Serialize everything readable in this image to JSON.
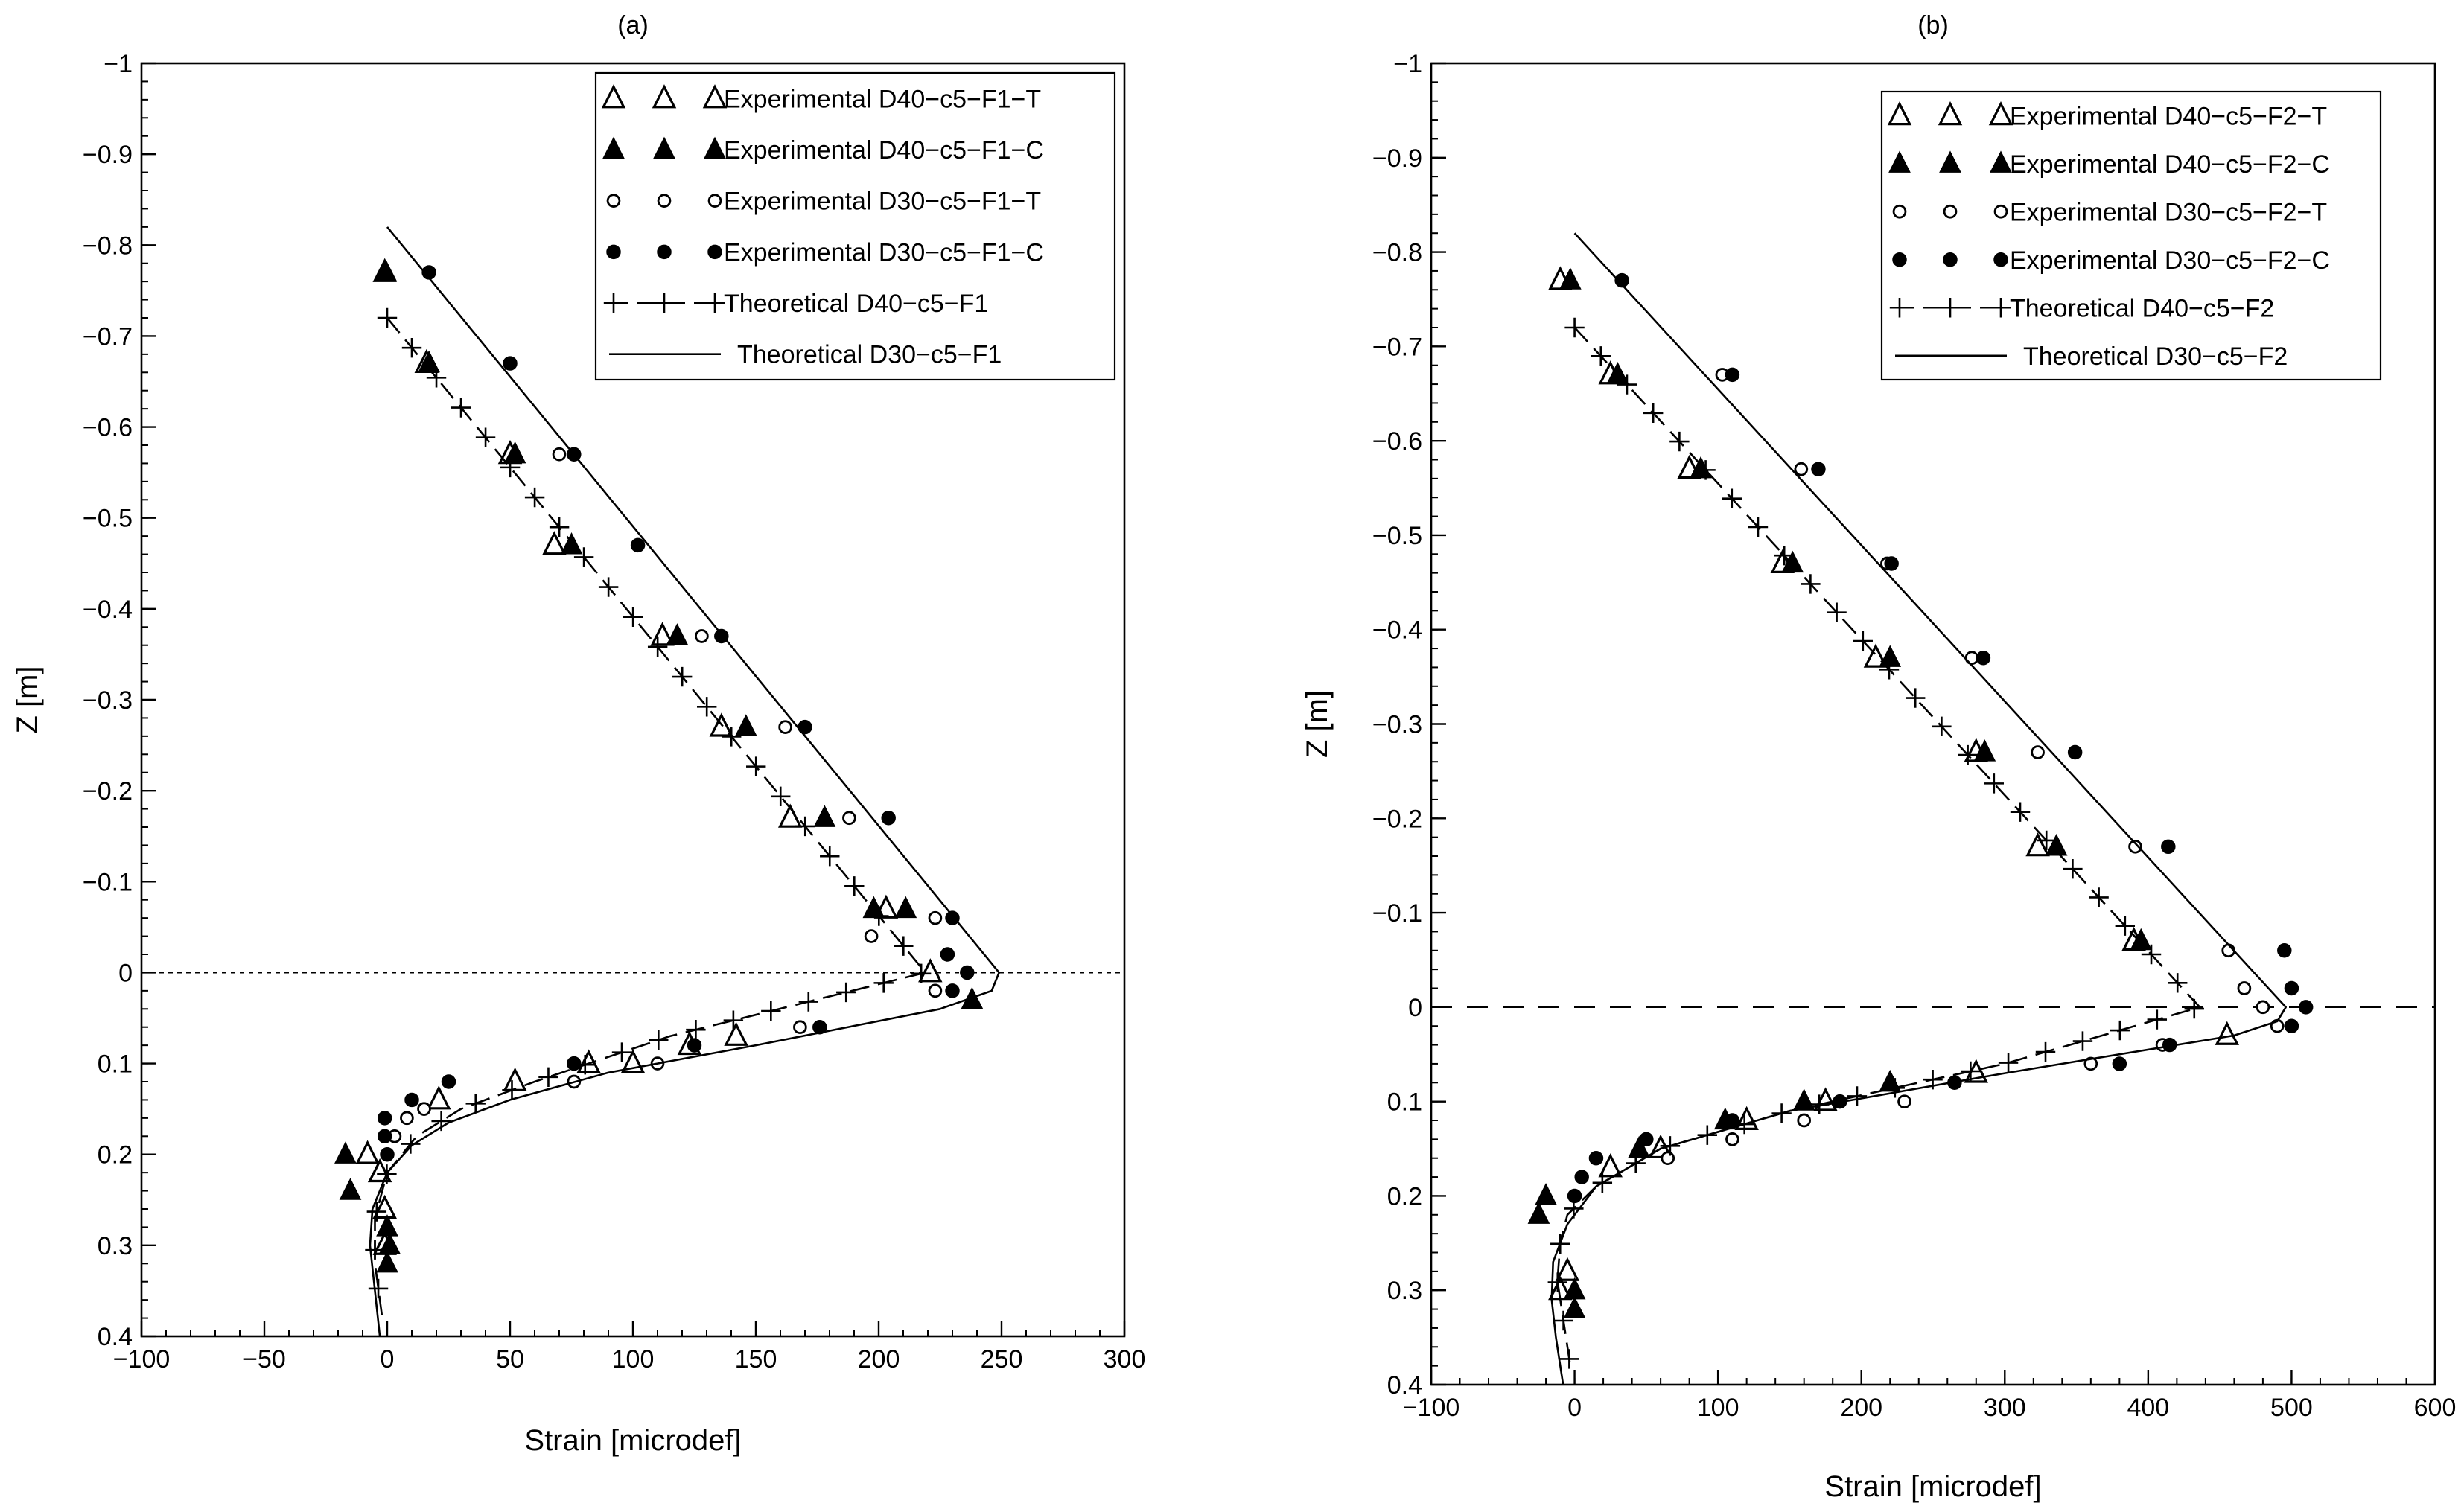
{
  "chart_data": [
    {
      "type": "scatter",
      "title": "(a)",
      "xlabel": "Strain [microdef]",
      "ylabel": "Z [m]",
      "xlim": [
        -100,
        300
      ],
      "ylim": [
        -1,
        0.4
      ],
      "y_inverted": true,
      "xticks": [
        -100,
        -50,
        0,
        50,
        100,
        150,
        200,
        250,
        300
      ],
      "xtick_labels": [
        "−100",
        "−50",
        "0",
        "50",
        "100",
        "150",
        "200",
        "250",
        "300"
      ],
      "yticks": [
        -1,
        -0.9,
        -0.8,
        -0.7,
        -0.6,
        -0.5,
        -0.4,
        -0.3,
        -0.2,
        -0.1,
        0,
        0.1,
        0.2,
        0.3,
        0.4
      ],
      "ytick_labels": [
        "−1",
        "−0.9",
        "−0.8",
        "−0.7",
        "−0.6",
        "−0.5",
        "−0.4",
        "−0.3",
        "−0.2",
        "−0.1",
        "0",
        "0.1",
        "0.2",
        "0.3",
        "0.4"
      ],
      "legend_position": "top-right",
      "reference_line": {
        "y": 0,
        "style": "dotted"
      },
      "series": [
        {
          "name": "Experimental D40−c5−F1−T",
          "marker": "triangle-open",
          "x": [
            -1,
            16,
            50,
            68,
            112,
            136,
            164,
            203,
            221,
            -8,
            -3,
            -1,
            -1,
            21,
            52,
            82,
            123,
            142,
            100
          ],
          "y": [
            -0.77,
            -0.67,
            -0.57,
            -0.47,
            -0.37,
            -0.27,
            -0.17,
            -0.07,
            0.0,
            0.2,
            0.22,
            0.26,
            0.3,
            0.14,
            0.12,
            0.1,
            0.08,
            0.07,
            0.1
          ]
        },
        {
          "name": "Experimental D40−c5−F1−C",
          "marker": "triangle-filled",
          "x": [
            -0.5,
            17,
            52,
            75,
            118,
            146,
            178,
            198,
            211,
            238,
            -17,
            -15,
            0,
            1,
            0
          ],
          "y": [
            -0.77,
            -0.67,
            -0.57,
            -0.47,
            -0.37,
            -0.27,
            -0.17,
            -0.07,
            -0.07,
            0.03,
            0.2,
            0.24,
            0.28,
            0.3,
            0.32
          ]
        },
        {
          "name": "Experimental D30−c5−F1−T",
          "marker": "circle-open",
          "x": [
            70,
            128,
            162,
            188,
            197,
            223,
            223,
            76,
            110,
            168,
            3,
            8,
            15
          ],
          "y": [
            -0.57,
            -0.37,
            -0.27,
            -0.17,
            -0.04,
            -0.06,
            0.02,
            0.12,
            0.1,
            0.06,
            0.18,
            0.16,
            0.15
          ]
        },
        {
          "name": "Experimental D30−c5−F1−C",
          "marker": "circle-filled",
          "x": [
            17,
            50,
            76,
            102,
            136,
            170,
            204,
            230,
            230,
            236,
            228,
            176,
            125,
            76,
            25,
            10,
            -1,
            -1,
            0
          ],
          "y": [
            -0.77,
            -0.67,
            -0.57,
            -0.47,
            -0.37,
            -0.27,
            -0.17,
            -0.06,
            0.02,
            0.0,
            -0.02,
            0.06,
            0.08,
            0.1,
            0.12,
            0.14,
            0.16,
            0.18,
            0.2
          ]
        },
        {
          "name": "Theoretical D40−c5−F1",
          "style": "dashed-plus",
          "x": [
            0,
            219,
            115,
            60,
            30,
            12,
            0,
            -5,
            -5,
            -2
          ],
          "y": [
            -0.72,
            0,
            0.07,
            0.12,
            0.15,
            0.18,
            0.22,
            0.27,
            0.32,
            0.38
          ]
        },
        {
          "name": "Theoretical D30−c5−F1",
          "style": "solid",
          "x": [
            0,
            249,
            246,
            225,
            150,
            90,
            50,
            25,
            10,
            0,
            -6,
            -7,
            -5,
            -3
          ],
          "y": [
            -0.82,
            0,
            0.02,
            0.04,
            0.08,
            0.11,
            0.14,
            0.165,
            0.19,
            0.22,
            0.26,
            0.3,
            0.35,
            0.4
          ]
        }
      ]
    },
    {
      "type": "scatter",
      "title": "(b)",
      "xlabel": "Strain [microdef]",
      "ylabel": "Z [m]",
      "xlim": [
        -100,
        600
      ],
      "ylim": [
        -1,
        0.4
      ],
      "y_inverted": true,
      "xticks": [
        -100,
        0,
        100,
        200,
        300,
        400,
        500,
        600
      ],
      "xtick_labels": [
        "−100",
        "0",
        "100",
        "200",
        "300",
        "400",
        "500",
        "600"
      ],
      "yticks": [
        -1,
        -0.9,
        -0.8,
        -0.7,
        -0.6,
        -0.5,
        -0.4,
        -0.3,
        -0.2,
        -0.1,
        0,
        0.1,
        0.2,
        0.3,
        0.4
      ],
      "ytick_labels": [
        "−1",
        "−0.9",
        "−0.8",
        "−0.7",
        "−0.6",
        "−0.5",
        "−0.4",
        "−0.3",
        "−0.2",
        "−0.1",
        "0",
        "0.1",
        "0.2",
        "0.3",
        "0.4"
      ],
      "legend_position": "top-right",
      "reference_line": {
        "y": 0,
        "style": "dashed"
      },
      "series": [
        {
          "name": "Experimental D40−c5−F2−T",
          "marker": "triangle-open",
          "x": [
            -10,
            25,
            80,
            145,
            210,
            280,
            323,
            390,
            455,
            280,
            175,
            120,
            60,
            25,
            -5,
            -10
          ],
          "y": [
            -0.77,
            -0.67,
            -0.57,
            -0.47,
            -0.37,
            -0.27,
            -0.17,
            -0.07,
            0.03,
            0.07,
            0.1,
            0.12,
            0.15,
            0.17,
            0.28,
            0.3
          ]
        },
        {
          "name": "Experimental D40−c5−F2−C",
          "marker": "triangle-filled",
          "x": [
            -3,
            30,
            88,
            152,
            220,
            286,
            336,
            395,
            220,
            160,
            105,
            45,
            -20,
            -25,
            0,
            0
          ],
          "y": [
            -0.77,
            -0.67,
            -0.57,
            -0.47,
            -0.37,
            -0.27,
            -0.17,
            -0.07,
            0.08,
            0.1,
            0.12,
            0.15,
            0.2,
            0.22,
            0.3,
            0.32
          ]
        },
        {
          "name": "Experimental D30−c5−F2−T",
          "marker": "circle-open",
          "x": [
            103,
            158,
            218,
            277,
            323,
            391,
            456,
            467,
            480,
            490,
            410,
            360,
            230,
            160,
            110,
            65
          ],
          "y": [
            -0.67,
            -0.57,
            -0.47,
            -0.37,
            -0.27,
            -0.17,
            -0.06,
            -0.02,
            0.0,
            0.02,
            0.04,
            0.06,
            0.1,
            0.12,
            0.14,
            0.16
          ]
        },
        {
          "name": "Experimental D30−c5−F2−C",
          "marker": "circle-filled",
          "x": [
            33,
            110,
            170,
            221,
            285,
            349,
            414,
            495,
            500,
            510,
            500,
            415,
            380,
            265,
            185,
            110,
            50,
            15,
            5,
            0
          ],
          "y": [
            -0.77,
            -0.67,
            -0.57,
            -0.47,
            -0.37,
            -0.27,
            -0.17,
            -0.06,
            -0.02,
            0.0,
            0.02,
            0.04,
            0.06,
            0.08,
            0.1,
            0.12,
            0.14,
            0.16,
            0.18,
            0.2
          ]
        },
        {
          "name": "Theoretical D40−c5−F2",
          "style": "dashed-plus",
          "x": [
            0,
            436,
            300,
            150,
            60,
            15,
            -5,
            -10,
            -12,
            -8,
            -3
          ],
          "y": [
            -0.72,
            0,
            0.06,
            0.11,
            0.15,
            0.19,
            0.22,
            0.25,
            0.29,
            0.33,
            0.38
          ]
        },
        {
          "name": "Theoretical D30−c5−F2",
          "style": "solid",
          "x": [
            0,
            496,
            490,
            460,
            300,
            150,
            60,
            15,
            -5,
            -15,
            -16,
            -13,
            -8
          ],
          "y": [
            -0.82,
            0,
            0.015,
            0.03,
            0.07,
            0.11,
            0.15,
            0.19,
            0.23,
            0.27,
            0.31,
            0.35,
            0.4
          ]
        }
      ]
    }
  ]
}
